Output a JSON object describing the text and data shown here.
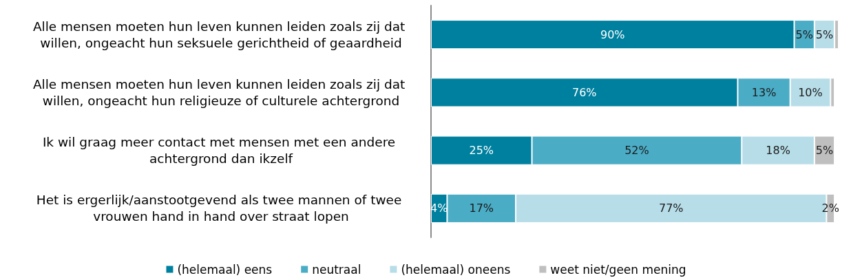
{
  "chart_data": {
    "type": "bar",
    "orientation": "horizontal",
    "stacked": true,
    "legend": "bottom",
    "categories": [
      "Alle mensen moeten hun leven kunnen leiden zoals zij dat willen, ongeacht hun seksuele gerichtheid of geaardheid",
      "Alle mensen moeten hun leven kunnen leiden zoals zij dat willen, ongeacht hun religieuze of culturele achtergrond",
      "Ik wil graag meer contact met mensen met een andere achtergrond dan ikzelf",
      "Het is ergerlijk/aanstootgevend als twee mannen of twee vrouwen hand in hand over straat lopen"
    ],
    "series": [
      {
        "name": "(helemaal) eens",
        "color": "#00809f",
        "values": [
          90,
          76,
          25,
          4
        ],
        "value_labels": [
          "90%",
          "76%",
          "25%",
          "4%"
        ]
      },
      {
        "name": "neutraal",
        "color": "#4bacc6",
        "values": [
          5,
          13,
          52,
          17
        ],
        "value_labels": [
          "5%",
          "13%",
          "52%",
          "17%"
        ]
      },
      {
        "name": "(helemaal) oneens",
        "color": "#b7dde8",
        "values": [
          5,
          10,
          18,
          77
        ],
        "value_labels": [
          "5%",
          "10%",
          "18%",
          "77%"
        ]
      },
      {
        "name": "weet niet/geen mening",
        "color": "#bfbfbf",
        "values": [
          1,
          1,
          5,
          2
        ],
        "value_labels": [
          null,
          null,
          "5%",
          "2%"
        ]
      }
    ]
  }
}
